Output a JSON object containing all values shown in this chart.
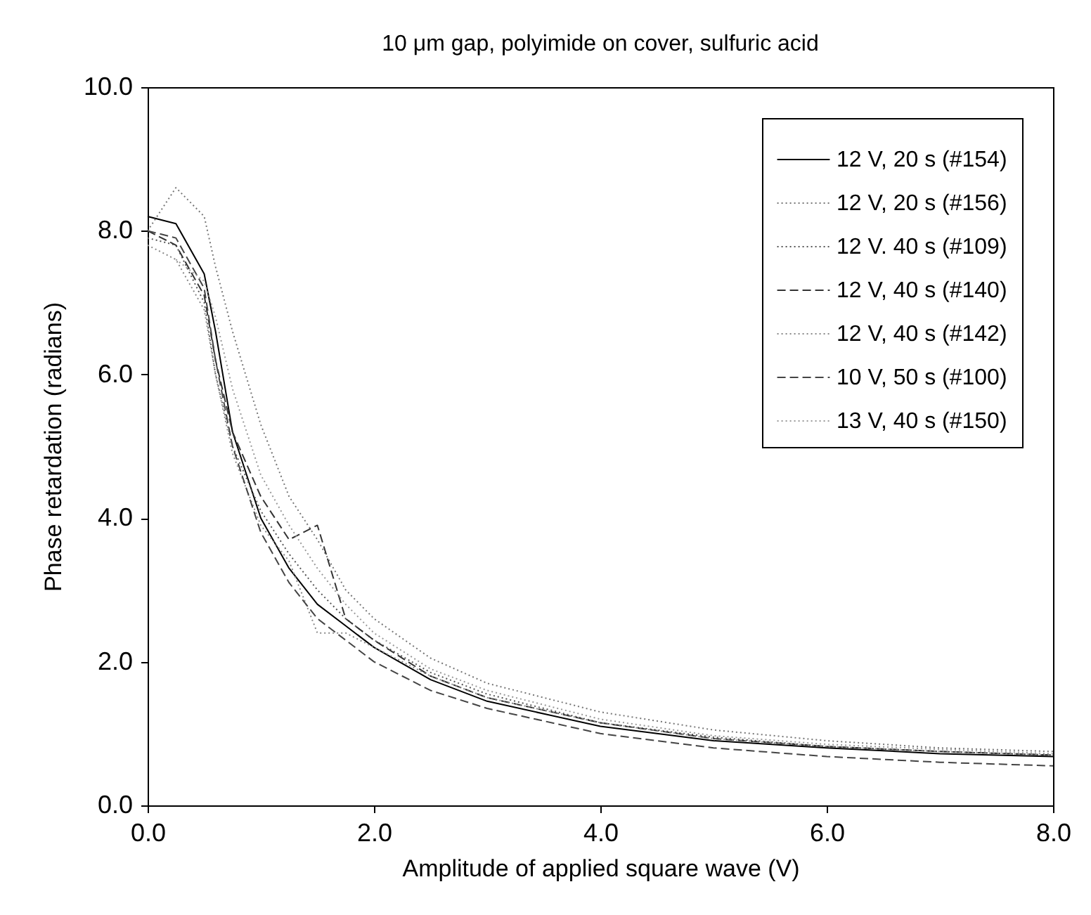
{
  "chart_data": {
    "type": "line",
    "title": "10 μm gap, polyimide on cover, sulfuric acid",
    "xlabel": "Amplitude of applied square wave (V)",
    "ylabel": "Phase retardation (radians)",
    "x": [
      0,
      0.25,
      0.5,
      0.6,
      0.75,
      1,
      1.25,
      1.5,
      1.75,
      2,
      2.5,
      3,
      4,
      5,
      6,
      7,
      8
    ],
    "series": [
      {
        "name": "12 V, 20 s (#154)",
        "color": "#000000",
        "line_style": "solid",
        "values": [
          8.2,
          8.1,
          7.4,
          6.6,
          5.2,
          4.0,
          3.3,
          2.8,
          2.5,
          2.2,
          1.75,
          1.45,
          1.1,
          0.9,
          0.8,
          0.72,
          0.68
        ]
      },
      {
        "name": "12 V, 20 s (#156)",
        "color": "#777777",
        "line_style": "dotted",
        "values": [
          8.0,
          8.6,
          8.2,
          7.5,
          6.6,
          5.3,
          4.3,
          3.7,
          3.0,
          2.6,
          2.05,
          1.7,
          1.3,
          1.05,
          0.9,
          0.8,
          0.75
        ]
      },
      {
        "name": "12 V. 40 s (#109)",
        "color": "#555555",
        "line_style": "dotted",
        "values": [
          7.9,
          7.8,
          7.0,
          6.0,
          5.0,
          4.1,
          3.5,
          3.0,
          2.6,
          2.3,
          1.85,
          1.55,
          1.15,
          0.95,
          0.82,
          0.75,
          0.7
        ]
      },
      {
        "name": "12 V, 40 s (#140)",
        "color": "#333333",
        "line_style": "dashed",
        "values": [
          8.0,
          7.8,
          7.1,
          6.2,
          5.2,
          4.3,
          3.7,
          3.9,
          2.6,
          2.3,
          1.8,
          1.5,
          1.15,
          0.93,
          0.82,
          0.75,
          0.7
        ]
      },
      {
        "name": "12 V, 40 s (#142)",
        "color": "#888888",
        "line_style": "dotted",
        "values": [
          7.8,
          7.6,
          6.9,
          6.0,
          4.9,
          3.9,
          3.4,
          2.4,
          2.4,
          2.2,
          1.8,
          1.5,
          1.15,
          0.93,
          0.82,
          0.75,
          0.7
        ]
      },
      {
        "name": "10 V, 50 s (#100)",
        "color": "#444444",
        "line_style": "dashed",
        "values": [
          8.0,
          7.9,
          7.2,
          6.2,
          5.0,
          3.8,
          3.1,
          2.6,
          2.3,
          2.0,
          1.6,
          1.35,
          1.0,
          0.8,
          0.68,
          0.6,
          0.55
        ]
      },
      {
        "name": "13 V, 40 s (#150)",
        "color": "#999999",
        "line_style": "dotted",
        "values": [
          null,
          7.6,
          7.3,
          6.8,
          5.8,
          4.6,
          3.9,
          3.3,
          2.8,
          2.4,
          1.9,
          1.6,
          1.2,
          0.97,
          0.85,
          0.78,
          0.72
        ]
      }
    ],
    "xlim": [
      0,
      8
    ],
    "xticks": [
      {
        "value": 0,
        "label": "0.0"
      },
      {
        "value": 2,
        "label": "2.0"
      },
      {
        "value": 4,
        "label": "4.0"
      },
      {
        "value": 6,
        "label": "6.0"
      },
      {
        "value": 8,
        "label": "8.0"
      }
    ],
    "ylim": [
      0,
      10
    ],
    "yticks": [
      {
        "value": 0,
        "label": "0.0"
      },
      {
        "value": 2,
        "label": "2.0"
      },
      {
        "value": 4,
        "label": "4.0"
      },
      {
        "value": 6,
        "label": "6.0"
      },
      {
        "value": 8,
        "label": "8.0"
      },
      {
        "value": 10,
        "label": "10.0"
      }
    ],
    "legend": "top right",
    "grid": false,
    "marker": "none"
  }
}
